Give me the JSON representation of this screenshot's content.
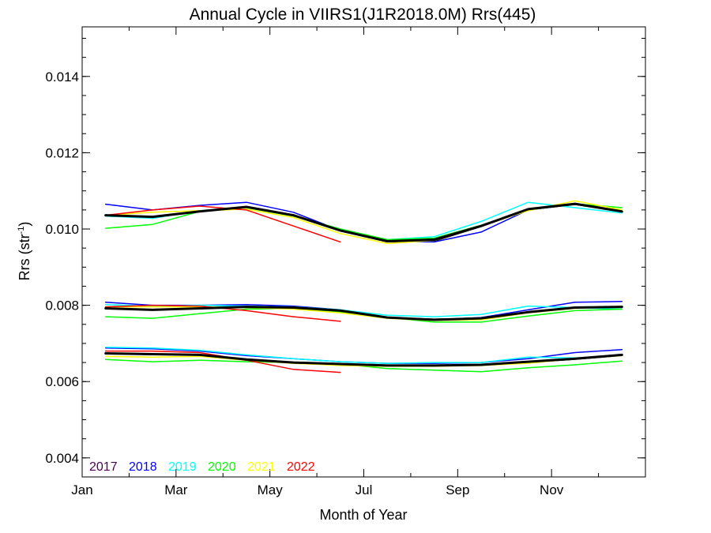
{
  "chart_data": {
    "type": "line",
    "title": "Annual Cycle in VIIRS1(J1R2018.0M) Rrs(445)",
    "xlabel": "Month of Year",
    "ylabel": "Rrs (str",
    "ylabel_sup": "-1",
    "ylabel_close": ")",
    "xlim": [
      1,
      13
    ],
    "ylim": [
      0.0035,
      0.0153
    ],
    "x_ticks": [
      {
        "value": 1,
        "label": "Jan"
      },
      {
        "value": 3,
        "label": "Mar"
      },
      {
        "value": 5,
        "label": "May"
      },
      {
        "value": 7,
        "label": "Jul"
      },
      {
        "value": 9,
        "label": "Sep"
      },
      {
        "value": 11,
        "label": "Nov"
      }
    ],
    "y_ticks": [
      {
        "value": 0.004,
        "label": "0.004"
      },
      {
        "value": 0.006,
        "label": "0.006"
      },
      {
        "value": 0.008,
        "label": "0.008"
      },
      {
        "value": 0.01,
        "label": "0.010"
      },
      {
        "value": 0.012,
        "label": "0.012"
      },
      {
        "value": 0.014,
        "label": "0.014"
      }
    ],
    "grid": false,
    "legend_position": "bottom-left",
    "legend": [
      {
        "name": "2017",
        "color": "#4b0055"
      },
      {
        "name": "2018",
        "color": "#0000ff"
      },
      {
        "name": "2019",
        "color": "#00ffff"
      },
      {
        "name": "2020",
        "color": "#00ff00"
      },
      {
        "name": "2021",
        "color": "#ffff00"
      },
      {
        "name": "2022",
        "color": "#ff0000"
      }
    ],
    "x": [
      1.5,
      2.5,
      3.5,
      4.5,
      5.5,
      6.5,
      7.5,
      8.5,
      9.5,
      10.5,
      11.5,
      12.5
    ],
    "groups": [
      {
        "series": [
          {
            "color": "#000000",
            "width": 1.2,
            "values": [
              0.01036,
              0.01032,
              0.01048,
              0.01058,
              0.01036,
              0.00996,
              0.00966,
              0.00968,
              0.01006,
              0.0105,
              0.01064,
              0.01048
            ]
          },
          {
            "color": "#0000ff",
            "width": 1.5,
            "values": [
              0.01065,
              0.0105,
              0.01062,
              0.0107,
              0.01044,
              0.00996,
              0.00968,
              0.00966,
              0.00992,
              0.0105,
              0.01066,
              0.01048
            ]
          },
          {
            "color": "#00ffff",
            "width": 1.5,
            "values": [
              0.01034,
              0.01028,
              0.01048,
              0.01058,
              0.01036,
              0.00998,
              0.00972,
              0.0098,
              0.0102,
              0.0107,
              0.01056,
              0.01042
            ]
          },
          {
            "color": "#00ff00",
            "width": 1.5,
            "values": [
              0.01002,
              0.01012,
              0.01046,
              0.01056,
              0.01034,
              0.01,
              0.00972,
              0.00976,
              0.0101,
              0.0105,
              0.01066,
              0.01056
            ]
          },
          {
            "color": "#ffff00",
            "width": 1.5,
            "values": [
              0.01036,
              0.01044,
              0.01048,
              0.01052,
              0.0103,
              0.00988,
              0.00962,
              0.0097,
              0.01008,
              0.01048,
              0.01074,
              0.0105
            ]
          },
          {
            "color": "#ff0000",
            "width": 1.5,
            "values": [
              0.01036,
              0.0105,
              0.0106,
              0.0105,
              0.01008,
              0.00966
            ]
          },
          {
            "color": "#000000",
            "width": 3,
            "values": [
              0.01036,
              0.01032,
              0.01046,
              0.01058,
              0.01036,
              0.00996,
              0.00968,
              0.00972,
              0.01008,
              0.01052,
              0.01066,
              0.01046
            ]
          }
        ]
      },
      {
        "series": [
          {
            "color": "#000000",
            "width": 1.2,
            "values": [
              0.00792,
              0.00788,
              0.00792,
              0.00796,
              0.00794,
              0.00786,
              0.00768,
              0.00764,
              0.00766,
              0.00782,
              0.00794,
              0.00796
            ]
          },
          {
            "color": "#0000ff",
            "width": 1.5,
            "values": [
              0.00808,
              0.008,
              0.008,
              0.00802,
              0.00798,
              0.00788,
              0.00768,
              0.00762,
              0.00768,
              0.00788,
              0.00808,
              0.0081
            ]
          },
          {
            "color": "#00ffff",
            "width": 1.5,
            "values": [
              0.00802,
              0.00798,
              0.008,
              0.00798,
              0.00796,
              0.00788,
              0.00774,
              0.0077,
              0.00776,
              0.00798,
              0.00794,
              0.0079
            ]
          },
          {
            "color": "#00ff00",
            "width": 1.5,
            "values": [
              0.0077,
              0.00766,
              0.00778,
              0.0079,
              0.00792,
              0.00782,
              0.00768,
              0.00756,
              0.00756,
              0.00772,
              0.00786,
              0.0079
            ]
          },
          {
            "color": "#ffff00",
            "width": 1.5,
            "values": [
              0.00796,
              0.00796,
              0.00796,
              0.00794,
              0.0079,
              0.0078,
              0.00766,
              0.0076,
              0.00762,
              0.0078,
              0.00792,
              0.00798
            ]
          },
          {
            "color": "#ff0000",
            "width": 1.5,
            "values": [
              0.00796,
              0.008,
              0.00798,
              0.00786,
              0.0077,
              0.00758
            ]
          },
          {
            "color": "#000000",
            "width": 3,
            "values": [
              0.00792,
              0.00788,
              0.00792,
              0.00796,
              0.00794,
              0.00786,
              0.00768,
              0.00762,
              0.00766,
              0.00782,
              0.00794,
              0.00796
            ]
          }
        ]
      },
      {
        "series": [
          {
            "color": "#000000",
            "width": 1.2,
            "values": [
              0.00674,
              0.0067,
              0.0067,
              0.00658,
              0.0065,
              0.00646,
              0.00642,
              0.00642,
              0.00644,
              0.0065,
              0.00658,
              0.00668
            ]
          },
          {
            "color": "#0000ff",
            "width": 1.5,
            "values": [
              0.00688,
              0.00686,
              0.0068,
              0.00668,
              0.0066,
              0.00652,
              0.00648,
              0.00648,
              0.0065,
              0.0066,
              0.00676,
              0.00684
            ]
          },
          {
            "color": "#00ffff",
            "width": 1.5,
            "values": [
              0.0069,
              0.00688,
              0.00682,
              0.0067,
              0.0066,
              0.00652,
              0.00648,
              0.0065,
              0.0065,
              0.00664,
              0.00662,
              0.00668
            ]
          },
          {
            "color": "#00ff00",
            "width": 1.5,
            "values": [
              0.00658,
              0.00652,
              0.00656,
              0.00652,
              0.0065,
              0.00646,
              0.00634,
              0.0063,
              0.00626,
              0.00636,
              0.00644,
              0.00654
            ]
          },
          {
            "color": "#ffff00",
            "width": 1.5,
            "values": [
              0.00666,
              0.00664,
              0.00666,
              0.00656,
              0.00648,
              0.00642,
              0.0064,
              0.0064,
              0.00642,
              0.00648,
              0.0066,
              0.00668
            ]
          },
          {
            "color": "#ff0000",
            "width": 1.5,
            "values": [
              0.0068,
              0.0068,
              0.00676,
              0.00656,
              0.00632,
              0.00624
            ]
          },
          {
            "color": "#000000",
            "width": 3,
            "values": [
              0.00674,
              0.00672,
              0.0067,
              0.00658,
              0.0065,
              0.00646,
              0.00642,
              0.00642,
              0.00644,
              0.00652,
              0.0066,
              0.0067
            ]
          }
        ]
      }
    ]
  }
}
